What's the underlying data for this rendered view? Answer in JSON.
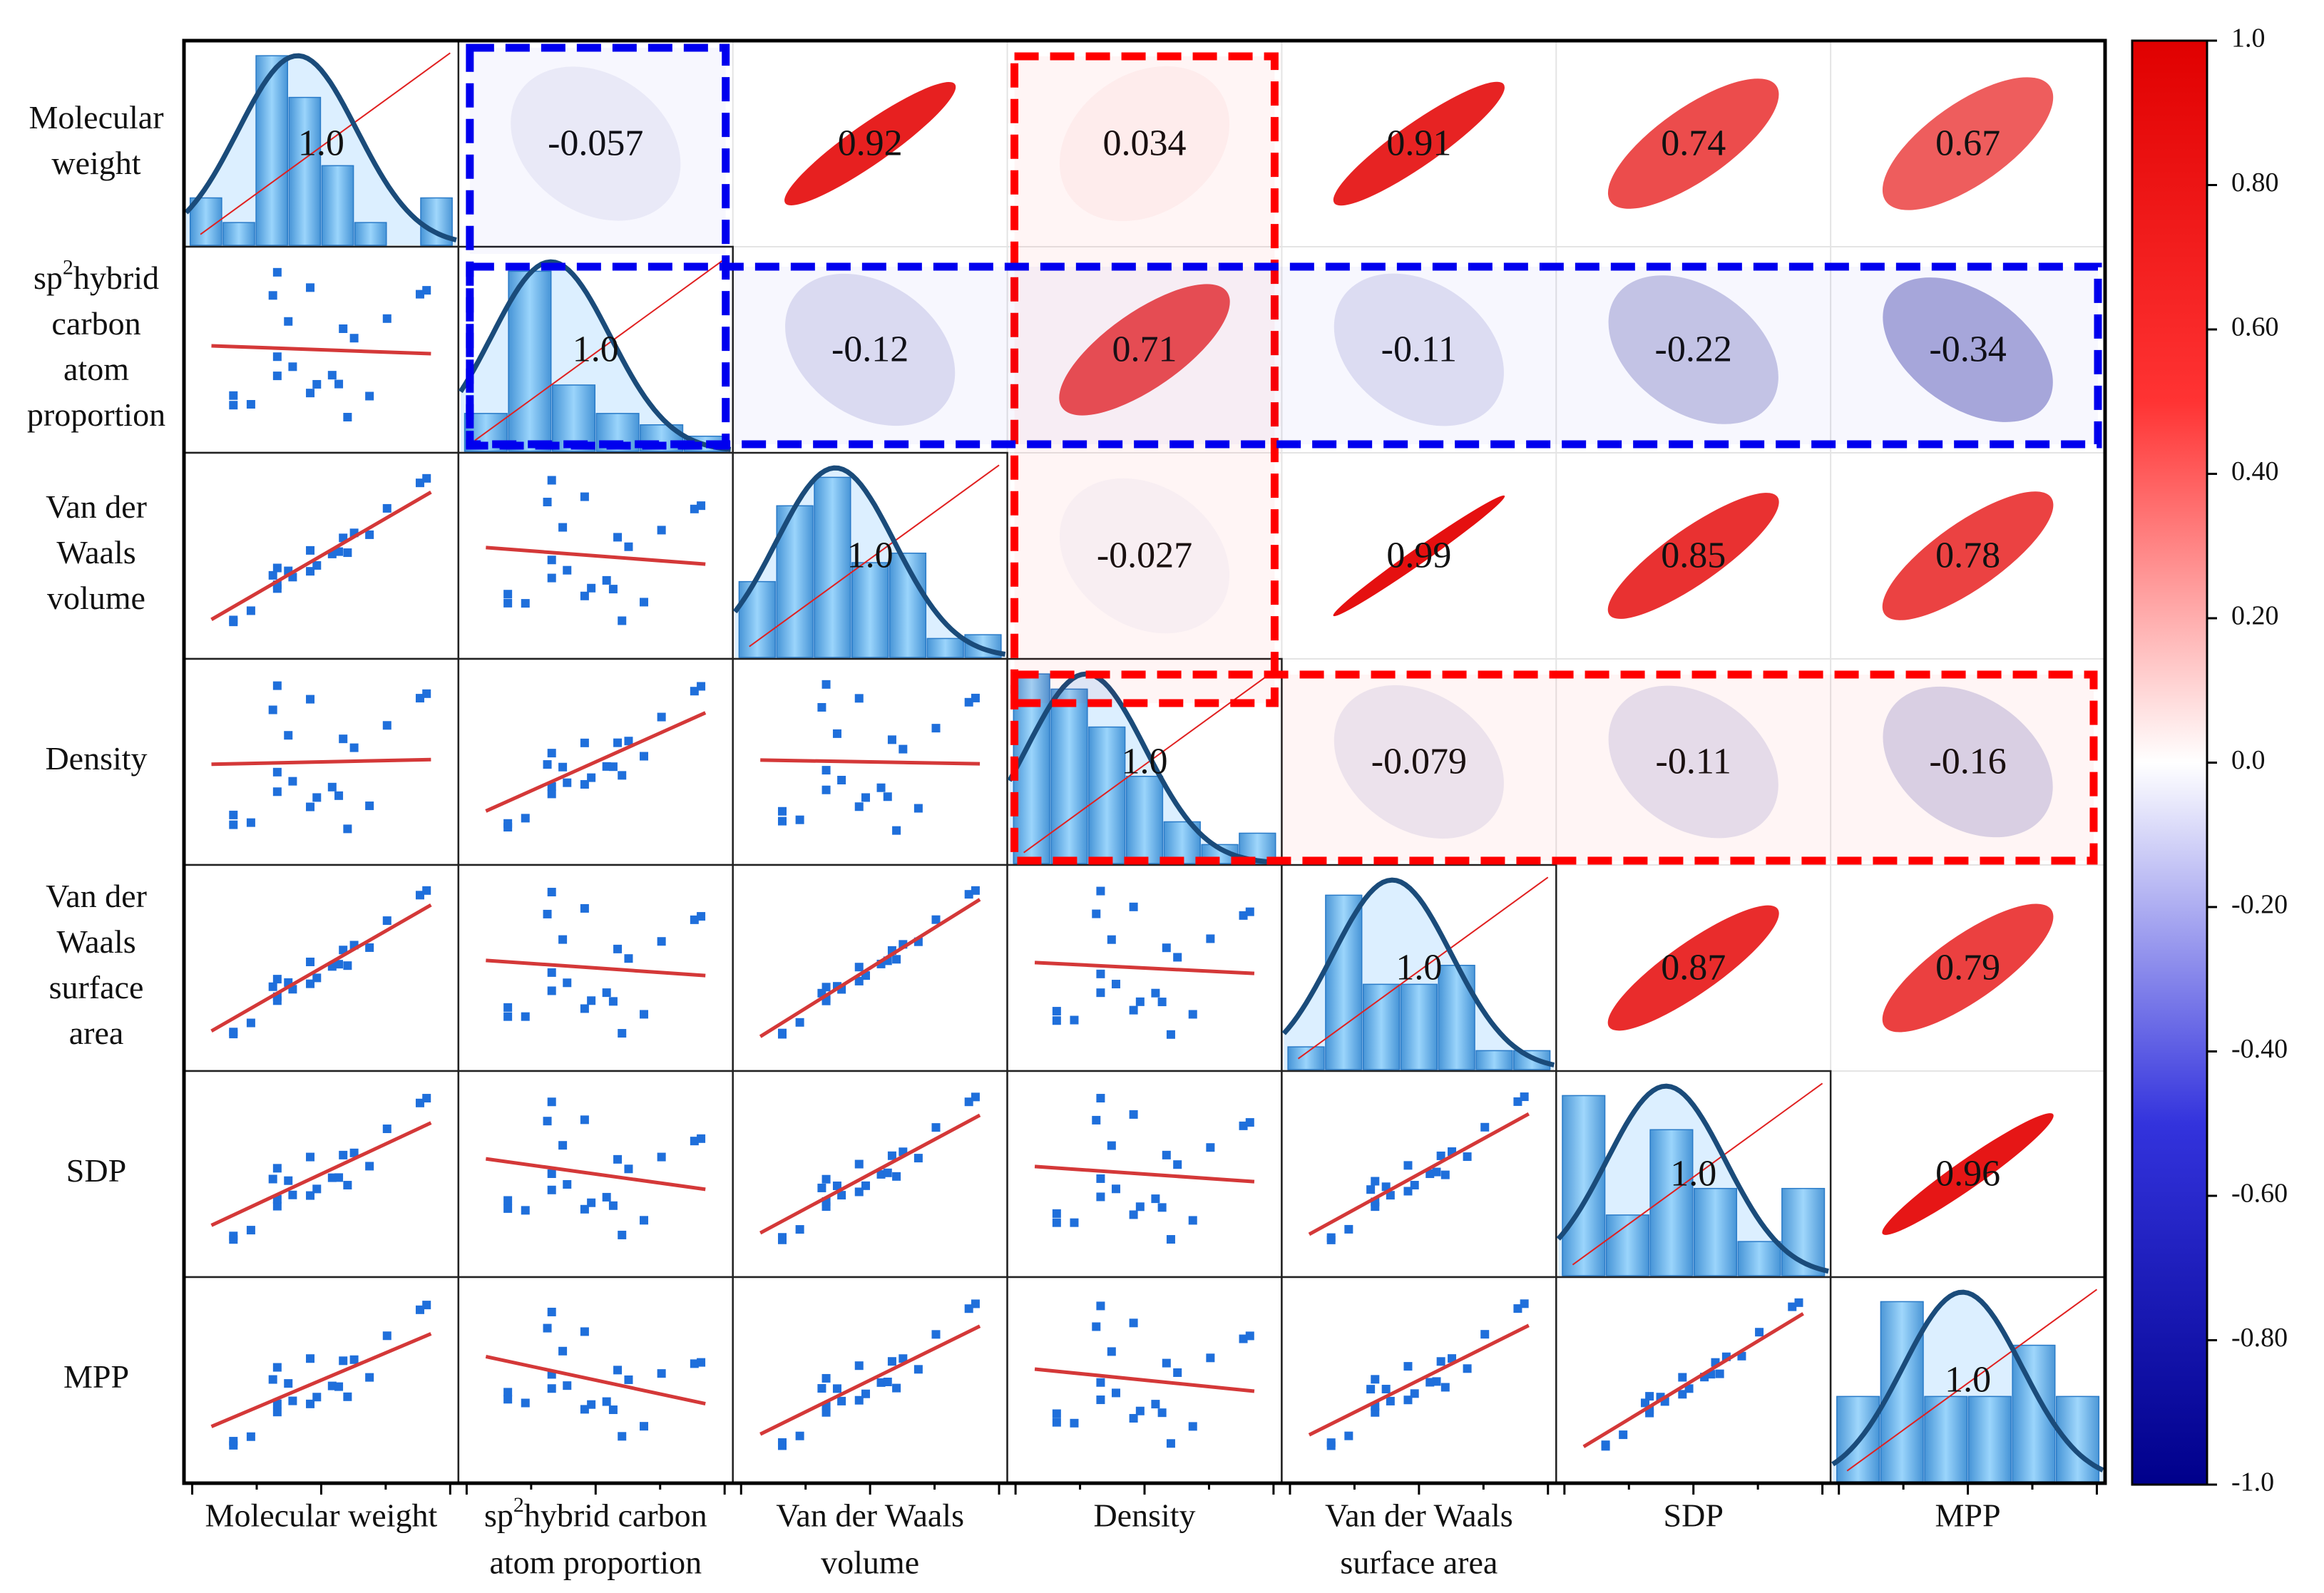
{
  "chart_data": {
    "type": "correlation_matrix",
    "variables": [
      "Molecular weight",
      "sp2hybrid carbon atom proportion",
      "Van der Waals volume",
      "Density",
      "Van der Waals surface area",
      "SDP",
      "MPP"
    ],
    "row_labels": [
      [
        "Molecular",
        "weight"
      ],
      [
        "sp2hybrid",
        "carbon",
        "atom",
        "proportion"
      ],
      [
        "Van der",
        "Waals",
        "volume"
      ],
      [
        "Density"
      ],
      [
        "Van der",
        "Waals",
        "surface",
        "area"
      ],
      [
        "SDP"
      ],
      [
        "MPP"
      ]
    ],
    "column_labels": [
      [
        "Molecular weight"
      ],
      [
        "sp2hybrid carbon",
        "atom proportion"
      ],
      [
        "Van der Waals",
        "volume"
      ],
      [
        "Density"
      ],
      [
        "Van der Waals",
        "surface area"
      ],
      [
        "SDP"
      ],
      [
        "MPP"
      ]
    ],
    "correlation_matrix": [
      [
        1.0,
        -0.057,
        0.92,
        0.034,
        0.91,
        0.74,
        0.67
      ],
      [
        -0.057,
        1.0,
        -0.12,
        0.71,
        -0.11,
        -0.22,
        -0.34
      ],
      [
        0.92,
        -0.12,
        1.0,
        -0.027,
        0.99,
        0.85,
        0.78
      ],
      [
        0.034,
        0.71,
        -0.027,
        1.0,
        -0.079,
        -0.11,
        -0.16
      ],
      [
        0.91,
        -0.11,
        0.99,
        -0.079,
        1.0,
        0.87,
        0.79
      ],
      [
        0.74,
        -0.22,
        0.85,
        -0.11,
        0.87,
        1.0,
        0.96
      ],
      [
        0.67,
        -0.34,
        0.78,
        -0.16,
        0.79,
        0.96,
        1.0
      ]
    ],
    "cell_labels": [
      [
        "1.0",
        "-0.057",
        "0.92",
        "0.034",
        "0.91",
        "0.74",
        "0.67"
      ],
      [
        "",
        "1.0",
        "-0.12",
        "0.71",
        "-0.11",
        "-0.22",
        "-0.34"
      ],
      [
        "",
        "",
        "1.0",
        "-0.027",
        "0.99",
        "0.85",
        "0.78"
      ],
      [
        "",
        "",
        "",
        "1.0",
        "-0.079",
        "-0.11",
        "-0.16"
      ],
      [
        "",
        "",
        "",
        "",
        "1.0",
        "0.87",
        "0.79"
      ],
      [
        "",
        "",
        "",
        "",
        "",
        "1.0",
        "0.96"
      ],
      [
        "",
        "",
        "",
        "",
        "",
        "",
        "1.0"
      ]
    ],
    "histograms": [
      [
        0.25,
        0.12,
        1.0,
        0.78,
        0.42,
        0.12,
        0.0,
        0.25
      ],
      [
        0.2,
        0.95,
        0.35,
        0.2,
        0.14,
        0.08
      ],
      [
        0.4,
        0.8,
        0.95,
        0.5,
        0.55,
        0.1,
        0.12
      ],
      [
        1.0,
        0.92,
        0.72,
        0.46,
        0.22,
        0.1,
        0.16
      ],
      [
        0.12,
        0.92,
        0.45,
        0.45,
        0.55,
        0.1,
        0.1
      ],
      [
        0.95,
        0.32,
        0.77,
        0.46,
        0.18,
        0.46
      ],
      [
        0.45,
        0.95,
        0.45,
        0.45,
        0.72,
        0.45
      ]
    ],
    "scatter_points": [
      [
        0.1,
        0.08
      ],
      [
        0.1,
        0.14
      ],
      [
        0.18,
        0.1
      ],
      [
        0.3,
        0.3
      ],
      [
        0.3,
        0.42
      ],
      [
        0.37,
        0.37
      ],
      [
        0.48,
        0.28
      ],
      [
        0.45,
        0.22
      ],
      [
        0.55,
        0.35
      ],
      [
        0.35,
        0.65
      ],
      [
        0.58,
        0.3
      ],
      [
        0.6,
        0.65
      ],
      [
        0.65,
        0.6
      ],
      [
        0.72,
        0.25
      ],
      [
        0.8,
        0.75
      ],
      [
        0.95,
        0.93
      ],
      [
        0.98,
        0.96
      ],
      [
        0.45,
        0.88
      ],
      [
        0.28,
        0.8
      ],
      [
        0.62,
        0.1
      ],
      [
        0.3,
        0.95
      ]
    ],
    "colorbar": {
      "min": -1.0,
      "max": 1.0,
      "ticks": [
        "1.0",
        "0.80",
        "0.60",
        "0.40",
        "0.20",
        "0.0",
        "-0.20",
        "-0.40",
        "-0.60",
        "-0.80",
        "-1.0"
      ],
      "colors": [
        "#00008b",
        "#3333dd",
        "#ffffff",
        "#ff3333",
        "#e00000"
      ]
    },
    "highlights": [
      {
        "color": "#ff0000",
        "label": "Density correlations"
      },
      {
        "color": "#0000ee",
        "label": "sp2hybrid carbon atom proportion correlations"
      }
    ],
    "colors": {
      "bar_fill": "#5ab0ec",
      "density_curve": "#1a4b7a",
      "density_fill": "#dcefff",
      "scatter_point": "#1f6fdb",
      "fit_line": "#d43838",
      "diagonal_line": "#e02020"
    }
  }
}
